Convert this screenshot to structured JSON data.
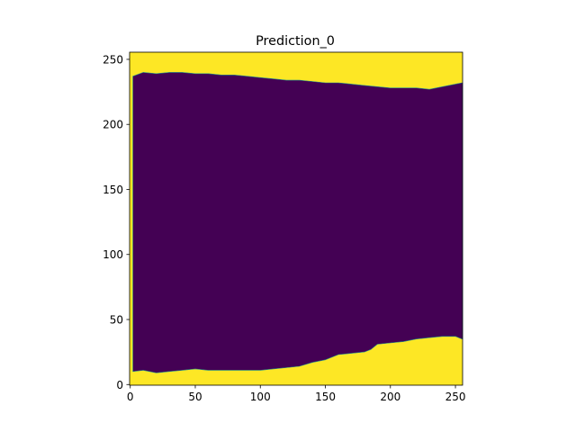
{
  "chart_data": {
    "type": "heatmap",
    "title": "Prediction_0",
    "xlabel": "",
    "ylabel": "",
    "image_size": [
      256,
      256
    ],
    "xlim": [
      -0.5,
      255.5
    ],
    "ylim": [
      255.5,
      -0.5
    ],
    "x_ticks": [
      0,
      50,
      100,
      150,
      200,
      250
    ],
    "y_ticks": [
      0,
      50,
      100,
      150,
      200,
      250
    ],
    "grid": false,
    "legend": "none",
    "colormap": "viridis",
    "classes": [
      {
        "value": 0,
        "color": "#440154"
      },
      {
        "value": 1,
        "color": "#fde725"
      }
    ],
    "region_class0_left_column": 2,
    "region_class0_top_boundary": [
      [
        2,
        10
      ],
      [
        10,
        11
      ],
      [
        20,
        9
      ],
      [
        30,
        10
      ],
      [
        40,
        11
      ],
      [
        50,
        12
      ],
      [
        60,
        11
      ],
      [
        70,
        11
      ],
      [
        80,
        11
      ],
      [
        90,
        11
      ],
      [
        100,
        11
      ],
      [
        110,
        12
      ],
      [
        120,
        13
      ],
      [
        130,
        14
      ],
      [
        140,
        17
      ],
      [
        150,
        19
      ],
      [
        160,
        23
      ],
      [
        170,
        24
      ],
      [
        180,
        25
      ],
      [
        185,
        27
      ],
      [
        190,
        31
      ],
      [
        200,
        32
      ],
      [
        210,
        33
      ],
      [
        220,
        35
      ],
      [
        230,
        36
      ],
      [
        240,
        37
      ],
      [
        250,
        37
      ],
      [
        255,
        35
      ]
    ],
    "region_class0_bottom_boundary": [
      [
        2,
        237
      ],
      [
        10,
        240
      ],
      [
        20,
        239
      ],
      [
        30,
        240
      ],
      [
        40,
        240
      ],
      [
        50,
        239
      ],
      [
        60,
        239
      ],
      [
        70,
        238
      ],
      [
        80,
        238
      ],
      [
        90,
        237
      ],
      [
        100,
        236
      ],
      [
        110,
        235
      ],
      [
        120,
        234
      ],
      [
        130,
        234
      ],
      [
        140,
        233
      ],
      [
        150,
        232
      ],
      [
        160,
        232
      ],
      [
        170,
        231
      ],
      [
        180,
        230
      ],
      [
        190,
        229
      ],
      [
        200,
        228
      ],
      [
        210,
        228
      ],
      [
        220,
        228
      ],
      [
        230,
        227
      ],
      [
        240,
        229
      ],
      [
        250,
        231
      ],
      [
        255,
        232
      ]
    ]
  }
}
